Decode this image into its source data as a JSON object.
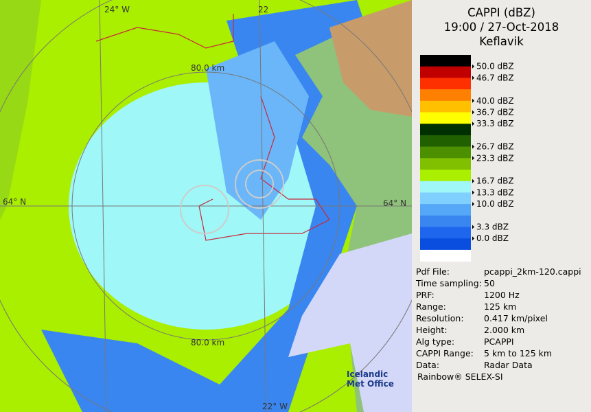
{
  "header": {
    "title": "CAPPI (dBZ)",
    "time": "19:00 / 27-Oct-2018",
    "site": "Keflavik"
  },
  "legend": {
    "labels": [
      "50.0 dBZ",
      "46.7 dBZ",
      "40.0 dBZ",
      "36.7 dBZ",
      "33.3 dBZ",
      "26.7 dBZ",
      "23.3 dBZ",
      "16.7 dBZ",
      "13.3 dBZ",
      "10.0 dBZ",
      "3.3 dBZ",
      "0.0 dBZ"
    ]
  },
  "info": {
    "rows": [
      [
        "Pdf File:",
        "pcappi_2km-120.cappi"
      ],
      [
        "Time sampling:",
        "50"
      ],
      [
        "PRF:",
        "1200 Hz"
      ],
      [
        "Range:",
        "125 km"
      ],
      [
        "Resolution:",
        "0.417 km/pixel"
      ],
      [
        "Height:",
        "2.000 km"
      ],
      [
        "Alg type:",
        "PCAPPI"
      ],
      [
        "CAPPI Range:",
        "5 km to 125 km"
      ],
      [
        "Data:",
        "Radar Data"
      ]
    ],
    "footer": "Rainbow® SELEX-SI"
  },
  "map": {
    "lon_left": "24° W",
    "lon_top": "22",
    "lon_bottom": "22° W",
    "lat_left": "64° N",
    "lat_right": "64° N",
    "ring_top": "80.0 km",
    "ring_bottom": "80.0 km",
    "logo": "Icelandic Met Office"
  }
}
